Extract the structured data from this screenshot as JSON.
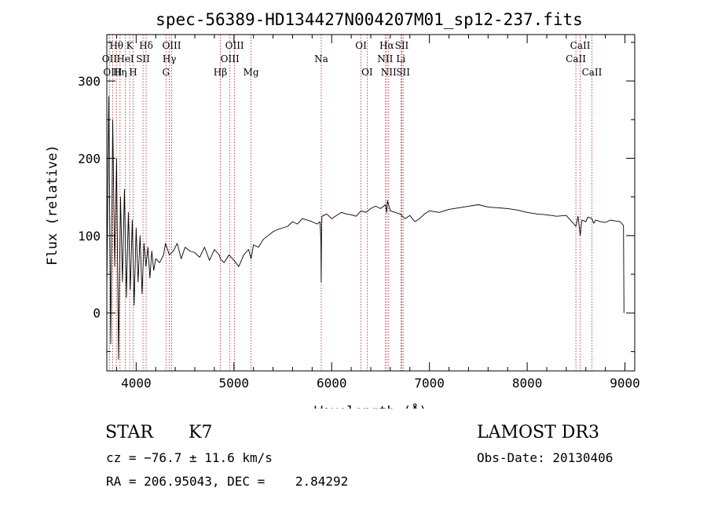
{
  "chart_data": {
    "type": "line",
    "title": "spec-56389-HD134427N004207M01_sp12-237.fits",
    "xlabel": "Wavelength (Å)",
    "ylabel": "Flux (relative)",
    "xlim": [
      3700,
      9100
    ],
    "ylim": [
      -75,
      360
    ],
    "xticks": [
      4000,
      5000,
      6000,
      7000,
      8000,
      9000
    ],
    "yticks": [
      0,
      100,
      200,
      300
    ],
    "grid": false,
    "series": [
      {
        "name": "flux",
        "x": [
          3700,
          3720,
          3740,
          3760,
          3780,
          3800,
          3820,
          3840,
          3860,
          3880,
          3900,
          3920,
          3940,
          3960,
          3980,
          4000,
          4020,
          4040,
          4060,
          4080,
          4100,
          4120,
          4140,
          4160,
          4180,
          4200,
          4240,
          4280,
          4300,
          4340,
          4380,
          4420,
          4460,
          4500,
          4550,
          4600,
          4650,
          4700,
          4750,
          4800,
          4850,
          4861,
          4900,
          4950,
          5000,
          5050,
          5100,
          5150,
          5175,
          5200,
          5250,
          5300,
          5350,
          5400,
          5450,
          5500,
          5550,
          5600,
          5650,
          5700,
          5750,
          5800,
          5850,
          5880,
          5890,
          5893,
          5896,
          5900,
          5950,
          6000,
          6050,
          6100,
          6150,
          6200,
          6250,
          6300,
          6350,
          6400,
          6450,
          6500,
          6550,
          6563,
          6570,
          6600,
          6650,
          6700,
          6750,
          6800,
          6850,
          6900,
          6950,
          7000,
          7100,
          7200,
          7300,
          7400,
          7500,
          7600,
          7700,
          7800,
          7900,
          8000,
          8100,
          8200,
          8300,
          8400,
          8498,
          8520,
          8542,
          8560,
          8600,
          8620,
          8662,
          8680,
          8700,
          8750,
          8800,
          8850,
          8900,
          8950,
          8985,
          8990
        ],
        "y": [
          30,
          280,
          -40,
          250,
          60,
          200,
          -60,
          150,
          40,
          160,
          20,
          130,
          30,
          120,
          10,
          110,
          40,
          100,
          25,
          90,
          60,
          85,
          45,
          80,
          55,
          70,
          65,
          75,
          90,
          75,
          80,
          90,
          70,
          85,
          80,
          78,
          72,
          85,
          68,
          82,
          75,
          70,
          65,
          75,
          68,
          60,
          75,
          82,
          70,
          88,
          85,
          95,
          100,
          105,
          108,
          110,
          112,
          118,
          115,
          122,
          120,
          118,
          115,
          118,
          95,
          40,
          100,
          125,
          128,
          122,
          126,
          130,
          128,
          127,
          125,
          132,
          130,
          135,
          138,
          135,
          140,
          130,
          145,
          132,
          130,
          128,
          122,
          126,
          118,
          122,
          128,
          132,
          130,
          134,
          136,
          138,
          140,
          137,
          136,
          135,
          133,
          130,
          128,
          127,
          125,
          126,
          112,
          125,
          100,
          120,
          118,
          124,
          122,
          116,
          120,
          118,
          117,
          120,
          119,
          118,
          113,
          0
        ]
      }
    ],
    "lines": [
      {
        "label": "Hθ",
        "x": 3798,
        "row": 1
      },
      {
        "label": "OII",
        "x": 3727,
        "row": 2
      },
      {
        "label": "OIII",
        "x": 3760,
        "row": 3
      },
      {
        "label": "K",
        "x": 3934,
        "row": 1
      },
      {
        "label": "HeI",
        "x": 3889,
        "row": 2
      },
      {
        "label": "Hη",
        "x": 3835,
        "row": 3
      },
      {
        "label": "Hδ",
        "x": 4102,
        "row": 1
      },
      {
        "label": "SII",
        "x": 4070,
        "row": 2
      },
      {
        "label": "H",
        "x": 3969,
        "row": 3
      },
      {
        "label": "OIII",
        "x": 4363,
        "row": 1
      },
      {
        "label": "Hγ",
        "x": 4340,
        "row": 2
      },
      {
        "label": "G",
        "x": 4305,
        "row": 3
      },
      {
        "label": "Hβ",
        "x": 4861,
        "row": 3
      },
      {
        "label": "OIII",
        "x": 5007,
        "row": 1
      },
      {
        "label": "OIII",
        "x": 4959,
        "row": 2
      },
      {
        "label": "Mg",
        "x": 5175,
        "row": 3
      },
      {
        "label": "Na",
        "x": 5893,
        "row": 2
      },
      {
        "label": "OI",
        "x": 6300,
        "row": 1
      },
      {
        "label": "OI",
        "x": 6363,
        "row": 3
      },
      {
        "label": "Hα",
        "x": 6563,
        "row": 1
      },
      {
        "label": "NII",
        "x": 6548,
        "row": 2
      },
      {
        "label": "NII",
        "x": 6583,
        "row": 3
      },
      {
        "label": "SII",
        "x": 6717,
        "row": 1
      },
      {
        "label": "Li",
        "x": 6708,
        "row": 2
      },
      {
        "label": "SII",
        "x": 6731,
        "row": 3
      },
      {
        "label": "CaII",
        "x": 8542,
        "row": 1
      },
      {
        "label": "CaII",
        "x": 8498,
        "row": 2
      },
      {
        "label": "CaII",
        "x": 8662,
        "row": 3
      }
    ]
  },
  "info": {
    "object_class": "STAR",
    "subclass": "K7",
    "survey": "LAMOST DR3",
    "cz": "cz = −76.7 ± 11.6 km/s",
    "obs_date": "Obs-Date: 20130406",
    "coords": "RA = 206.95043, DEC =    2.84292"
  },
  "colors": {
    "axis": "#000000",
    "spectrum": "#000000",
    "line_marker": "#b22222"
  }
}
